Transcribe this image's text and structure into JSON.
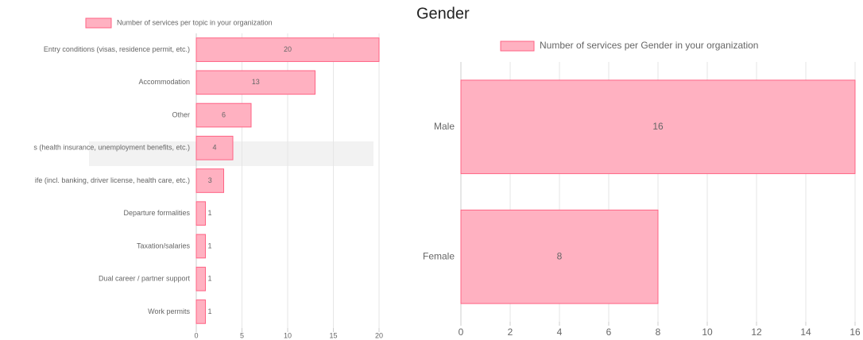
{
  "chart_data": [
    {
      "type": "hbar",
      "legend": "Number of services per topic in your organization",
      "categories": [
        "Entry conditions (visas, residence permit, etc.)",
        "Accommodation",
        "Other",
        "s (health insurance, unemployment benefits, etc.)",
        "ife (incl. banking, driver license, health care, etc.)",
        "Departure formalities",
        "Taxation/salaries",
        "Dual career / partner support",
        "Work permits"
      ],
      "values": [
        20,
        13,
        6,
        4,
        3,
        1,
        1,
        1,
        1
      ],
      "color": "#ffb1c1",
      "border_color": "#ff6384",
      "xlim": [
        0,
        20
      ],
      "xticks": [
        0,
        5,
        10,
        15,
        20
      ],
      "grid": true
    },
    {
      "type": "hbar",
      "title": "Gender",
      "legend": "Number of services per Gender in your organization",
      "categories": [
        "Male",
        "Female"
      ],
      "values": [
        16,
        8
      ],
      "color": "#ffb1c1",
      "border_color": "#ff6384",
      "xlim": [
        0,
        16
      ],
      "xticks": [
        0,
        2,
        4,
        6,
        8,
        10,
        12,
        14,
        16
      ],
      "grid": true
    }
  ]
}
